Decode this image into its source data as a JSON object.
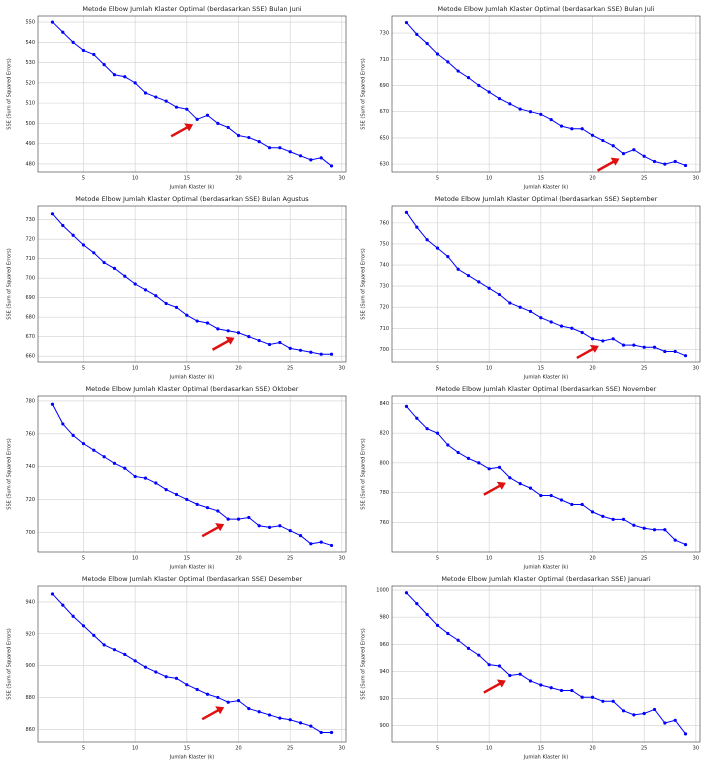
{
  "chart_data": [
    {
      "type": "line",
      "title": "Metode Elbow Jumlah Klaster Optimal (berdasarkan SSE) Bulan Juni",
      "xlabel": "Jumlah Klaster (k)",
      "ylabel": "SSE (Sum of Squared Errors)",
      "x": [
        2,
        3,
        4,
        5,
        6,
        7,
        8,
        9,
        10,
        11,
        12,
        13,
        14,
        15,
        16,
        17,
        18,
        19,
        20,
        21,
        22,
        23,
        24,
        25,
        26,
        27,
        28,
        29
      ],
      "values": [
        550,
        545,
        540,
        536,
        534,
        529,
        524,
        523,
        520,
        515,
        513,
        511,
        508,
        507,
        502,
        504,
        500,
        498,
        494,
        493,
        491,
        488,
        488,
        486,
        484,
        482,
        483,
        479
      ],
      "color": "#0000ff",
      "xlim": [
        0.6,
        30.4
      ],
      "ylim": [
        476,
        553
      ],
      "xticks": [
        5,
        10,
        15,
        20,
        25,
        30
      ],
      "yticks": [
        480,
        490,
        500,
        510,
        520,
        530,
        540,
        550
      ],
      "grid": true
    },
    {
      "type": "line",
      "title": "Metode Elbow Jumlah Klaster Optimal (berdasarkan SSE) Bulan Juli",
      "xlabel": "Jumlah Klaster (k)",
      "ylabel": "SSE (Sum of Squared Errors)",
      "x": [
        2,
        3,
        4,
        5,
        6,
        7,
        8,
        9,
        10,
        11,
        12,
        13,
        14,
        15,
        16,
        17,
        18,
        19,
        20,
        21,
        22,
        23,
        24,
        25,
        26,
        27,
        28,
        29
      ],
      "values": [
        738,
        729,
        722,
        714,
        708,
        701,
        696,
        690,
        685,
        680,
        676,
        672,
        670,
        668,
        664,
        659,
        657,
        657,
        652,
        648,
        644,
        638,
        641,
        636,
        632,
        630,
        632,
        629
      ],
      "color": "#0000ff",
      "xlim": [
        0.6,
        30.4
      ],
      "ylim": [
        624,
        743
      ],
      "xticks": [
        5,
        10,
        15,
        20,
        25,
        30
      ],
      "yticks": [
        630,
        650,
        670,
        690,
        710,
        730
      ],
      "grid": true
    },
    {
      "type": "line",
      "title": "Metode Elbow Jumlah Klaster Optimal (berdasarkan SSE) Bulan Agustus",
      "xlabel": "Jumlah Klaster (k)",
      "ylabel": "SSE (Sum of Squared Errors)",
      "x": [
        2,
        3,
        4,
        5,
        6,
        7,
        8,
        9,
        10,
        11,
        12,
        13,
        14,
        15,
        16,
        17,
        18,
        19,
        20,
        21,
        22,
        23,
        24,
        25,
        26,
        27,
        28,
        29
      ],
      "values": [
        733,
        727,
        722,
        717,
        713,
        708,
        705,
        701,
        697,
        694,
        691,
        687,
        685,
        681,
        678,
        677,
        674,
        673,
        672,
        670,
        668,
        666,
        667,
        664,
        663,
        662,
        661,
        661
      ],
      "color": "#0000ff",
      "xlim": [
        0.6,
        30.4
      ],
      "ylim": [
        657,
        737
      ],
      "xticks": [
        5,
        10,
        15,
        20,
        25,
        30
      ],
      "yticks": [
        660,
        670,
        680,
        690,
        700,
        710,
        720,
        730
      ],
      "grid": true
    },
    {
      "type": "line",
      "title": "Metode Elbow Jumlah Klaster Optimal (berdasarkan SSE) September",
      "xlabel": "Jumlah Klaster (k)",
      "ylabel": "SSE (Sum of Squared Errors)",
      "x": [
        2,
        3,
        4,
        5,
        6,
        7,
        8,
        9,
        10,
        11,
        12,
        13,
        14,
        15,
        16,
        17,
        18,
        19,
        20,
        21,
        22,
        23,
        24,
        25,
        26,
        27,
        28,
        29
      ],
      "values": [
        765,
        758,
        752,
        748,
        744,
        738,
        735,
        732,
        729,
        726,
        722,
        720,
        718,
        715,
        713,
        711,
        710,
        708,
        705,
        704,
        705,
        702,
        702,
        701,
        701,
        699,
        699,
        697
      ],
      "color": "#0000ff",
      "xlim": [
        0.6,
        30.4
      ],
      "ylim": [
        694,
        768
      ],
      "xticks": [
        5,
        10,
        15,
        20,
        25,
        30
      ],
      "yticks": [
        700,
        710,
        720,
        730,
        740,
        750,
        760
      ],
      "grid": true
    },
    {
      "type": "line",
      "title": "Metode Elbow Jumlah Klaster Optimal (berdasarkan SSE) Oktober",
      "xlabel": "Jumlah Klaster (k)",
      "ylabel": "SSE (Sum of Squared Errors)",
      "x": [
        2,
        3,
        4,
        5,
        6,
        7,
        8,
        9,
        10,
        11,
        12,
        13,
        14,
        15,
        16,
        17,
        18,
        19,
        20,
        21,
        22,
        23,
        24,
        25,
        26,
        27,
        28,
        29
      ],
      "values": [
        778,
        766,
        759,
        754,
        750,
        746,
        742,
        739,
        734,
        733,
        730,
        726,
        723,
        720,
        717,
        715,
        713,
        708,
        708,
        709,
        704,
        703,
        704,
        701,
        698,
        693,
        694,
        692
      ],
      "color": "#0000ff",
      "xlim": [
        0.6,
        30.4
      ],
      "ylim": [
        688,
        783
      ],
      "xticks": [
        5,
        10,
        15,
        20,
        25,
        30
      ],
      "yticks": [
        700,
        720,
        740,
        760,
        780
      ],
      "grid": true
    },
    {
      "type": "line",
      "title": "Metode Elbow Jumlah Klaster Optimal (berdasarkan SSE) November",
      "xlabel": "Jumlah Klaster (k)",
      "ylabel": "SSE (Sum of Squared Errors)",
      "x": [
        2,
        3,
        4,
        5,
        6,
        7,
        8,
        9,
        10,
        11,
        12,
        13,
        14,
        15,
        16,
        17,
        18,
        19,
        20,
        21,
        22,
        23,
        24,
        25,
        26,
        27,
        28,
        29
      ],
      "values": [
        838,
        830,
        823,
        820,
        812,
        807,
        803,
        800,
        796,
        797,
        790,
        786,
        783,
        778,
        778,
        775,
        772,
        772,
        767,
        764,
        762,
        762,
        758,
        756,
        755,
        755,
        748,
        745
      ],
      "color": "#0000ff",
      "xlim": [
        0.6,
        30.4
      ],
      "ylim": [
        740,
        845
      ],
      "xticks": [
        5,
        10,
        15,
        20,
        25,
        30
      ],
      "yticks": [
        760,
        780,
        800,
        820,
        840
      ],
      "grid": true
    },
    {
      "type": "line",
      "title": "Metode Elbow Jumlah Klaster Optimal (berdasarkan SSE) Desember",
      "xlabel": "Jumlah Klaster (k)",
      "ylabel": "SSE (Sum of Squared Errors)",
      "x": [
        2,
        3,
        4,
        5,
        6,
        7,
        8,
        9,
        10,
        11,
        12,
        13,
        14,
        15,
        16,
        17,
        18,
        19,
        20,
        21,
        22,
        23,
        24,
        25,
        26,
        27,
        28,
        29
      ],
      "values": [
        945,
        938,
        931,
        925,
        919,
        913,
        910,
        907,
        903,
        899,
        896,
        893,
        892,
        888,
        885,
        882,
        880,
        877,
        878,
        873,
        871,
        869,
        867,
        866,
        864,
        862,
        858,
        858
      ],
      "color": "#0000ff",
      "xlim": [
        0.6,
        30.4
      ],
      "ylim": [
        852,
        950
      ],
      "xticks": [
        5,
        10,
        15,
        20,
        25,
        30
      ],
      "yticks": [
        860,
        880,
        900,
        920,
        940
      ],
      "grid": true
    },
    {
      "type": "line",
      "title": "Metode Elbow Jumlah Klaster Optimal (berdasarkan SSE) Januari",
      "xlabel": "Jumlah Klaster (k)",
      "ylabel": "SSE (Sum of Squared Errors)",
      "x": [
        2,
        3,
        4,
        5,
        6,
        7,
        8,
        9,
        10,
        11,
        12,
        13,
        14,
        15,
        16,
        17,
        18,
        19,
        20,
        21,
        22,
        23,
        24,
        25,
        26,
        27,
        28,
        29
      ],
      "values": [
        998,
        990,
        982,
        974,
        968,
        963,
        957,
        952,
        945,
        944,
        937,
        938,
        933,
        930,
        928,
        926,
        926,
        921,
        921,
        918,
        918,
        911,
        908,
        909,
        912,
        902,
        904,
        894
      ],
      "color": "#0000ff",
      "xlim": [
        0.6,
        30.4
      ],
      "ylim": [
        888,
        1003
      ],
      "xticks": [
        5,
        10,
        15,
        20,
        25,
        30
      ],
      "yticks": [
        900,
        920,
        940,
        960,
        980,
        1000
      ],
      "grid": true
    }
  ]
}
